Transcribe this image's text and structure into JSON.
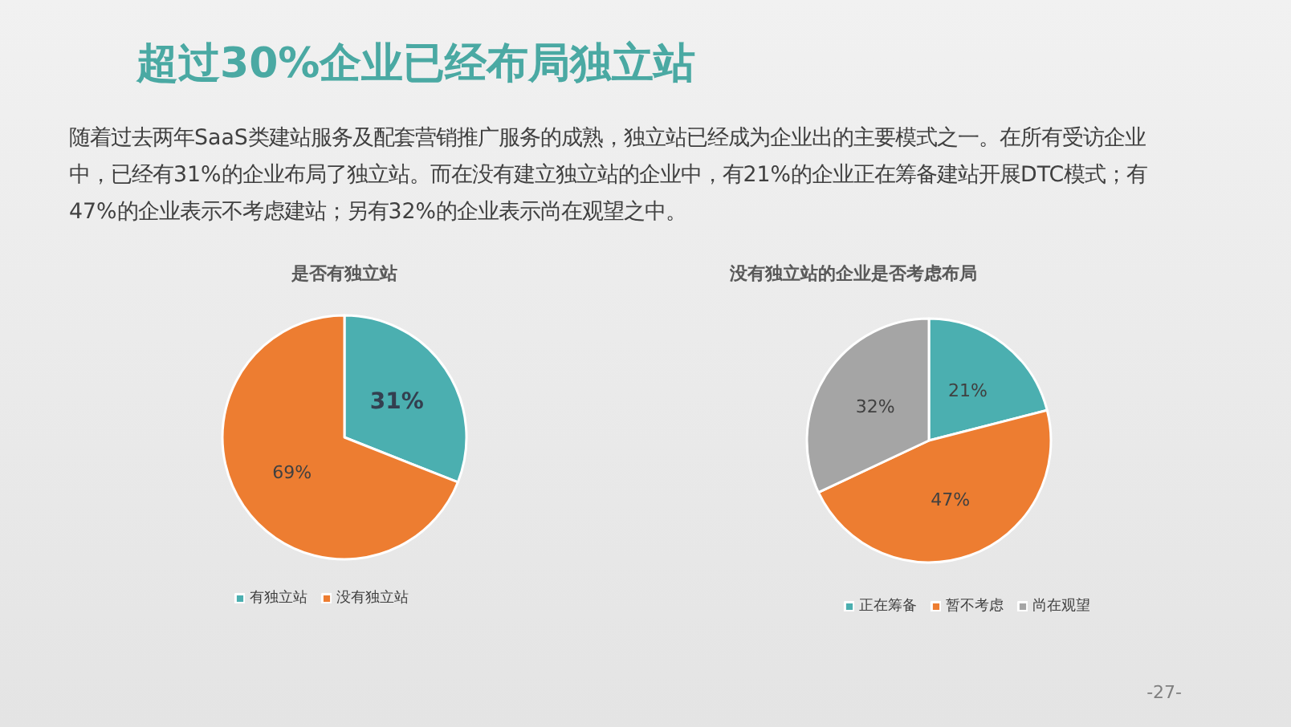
{
  "chart_data": [
    {
      "type": "other",
      "title": "超过30%企业已经布局独立站",
      "subtitle": "随着过去两年SaaS类建站服务及配套营销推广服务的成熟，独立站已经成为企业出的主要模式之一。在所有受访企业中，已经有31%的企业布局了独立站。而在没有建立独立站的企业中，有21%的企业正在筹备建站开展DTC模式；有47%的企业表示不考虑建站；另有32%的企业表示尚在观望之中。",
      "annotations": [
        "-27-"
      ]
    },
    {
      "type": "pie",
      "title": "是否有独立站",
      "categories": [
        "有独立站",
        "没有独立站"
      ],
      "values": [
        31,
        69
      ],
      "colors": [
        "#4bafb0",
        "#ed7d31"
      ],
      "value_labels": [
        "31%",
        "69%"
      ],
      "legend": "bottom"
    },
    {
      "type": "pie",
      "title": "没有独立站的企业是否考虑布局",
      "categories": [
        "正在筹备",
        "暂不考虑",
        "尚在观望"
      ],
      "values": [
        21,
        47,
        32
      ],
      "colors": [
        "#4bafb0",
        "#ed7d31",
        "#a5a5a5"
      ],
      "value_labels": [
        "21%",
        "47%",
        "32%"
      ],
      "legend": "bottom"
    }
  ]
}
